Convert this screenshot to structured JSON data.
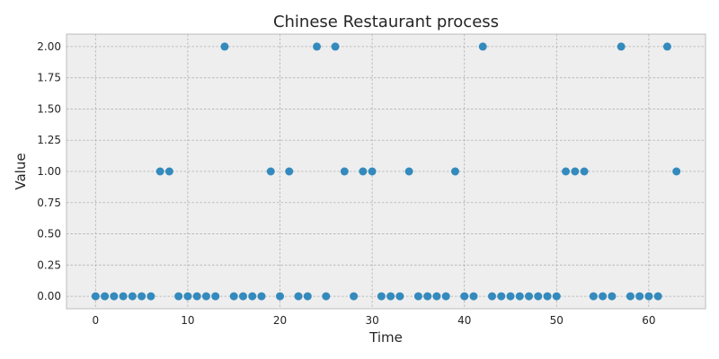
{
  "chart_data": {
    "type": "scatter",
    "title": "Chinese Restaurant process",
    "xlabel": "Time",
    "ylabel": "Value",
    "xlim": [
      -3.15,
      66.15
    ],
    "ylim": [
      -0.1,
      2.1
    ],
    "xticks": [
      0,
      10,
      20,
      30,
      40,
      50,
      60
    ],
    "xtick_labels": [
      "0",
      "10",
      "20",
      "30",
      "40",
      "50",
      "60"
    ],
    "yticks": [
      0,
      0.25,
      0.5,
      0.75,
      1.0,
      1.25,
      1.5,
      1.75,
      2.0
    ],
    "ytick_labels": [
      "0.00",
      "0.25",
      "0.50",
      "0.75",
      "1.00",
      "1.25",
      "1.50",
      "1.75",
      "2.00"
    ],
    "grid": true,
    "marker_color": "#348abd",
    "background_color": "#eeeeee",
    "x": [
      0,
      1,
      2,
      3,
      4,
      5,
      6,
      7,
      8,
      9,
      10,
      11,
      12,
      13,
      14,
      15,
      16,
      17,
      18,
      19,
      20,
      21,
      22,
      23,
      24,
      25,
      26,
      27,
      28,
      29,
      30,
      31,
      32,
      33,
      34,
      35,
      36,
      37,
      38,
      39,
      40,
      41,
      42,
      43,
      44,
      45,
      46,
      47,
      48,
      49,
      50,
      51,
      52,
      53,
      54,
      55,
      56,
      57,
      58,
      59,
      60,
      61,
      62,
      63
    ],
    "y": [
      0,
      0,
      0,
      0,
      0,
      0,
      0,
      1,
      1,
      0,
      0,
      0,
      0,
      0,
      2,
      0,
      0,
      0,
      0,
      1,
      0,
      1,
      0,
      0,
      2,
      0,
      2,
      1,
      0,
      1,
      1,
      0,
      0,
      0,
      1,
      0,
      0,
      0,
      0,
      1,
      0,
      0,
      2,
      0,
      0,
      0,
      0,
      0,
      0,
      0,
      0,
      1,
      1,
      1,
      0,
      0,
      0,
      2,
      0,
      0,
      0,
      0,
      2,
      1
    ]
  }
}
